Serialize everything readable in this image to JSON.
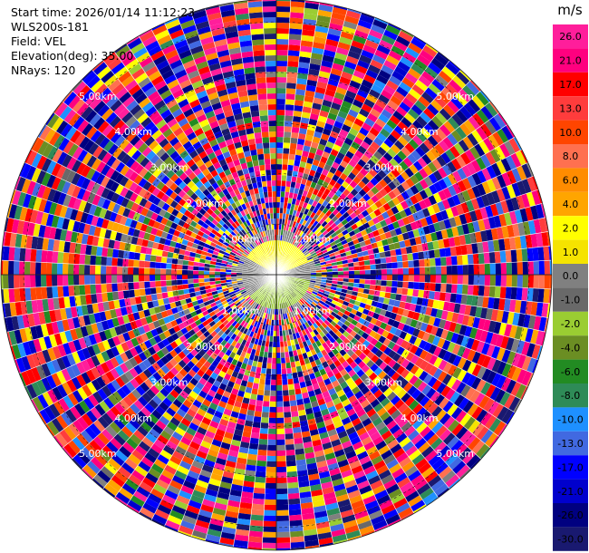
{
  "info": {
    "start_time": "Start time: 2026/01/14 11:12:23",
    "site": "WLS200s-181",
    "field": "Field: VEL",
    "elevation": "Elevation(deg): 35.00",
    "nrays": "NRays: 120"
  },
  "colorbar": {
    "unit": "m/s",
    "bins": [
      {
        "label": "26.0",
        "color": "#ff1e9b"
      },
      {
        "label": "21.0",
        "color": "#ff007f"
      },
      {
        "label": "17.0",
        "color": "#ff0000"
      },
      {
        "label": "13.0",
        "color": "#ff3c3c"
      },
      {
        "label": "10.0",
        "color": "#ff4500"
      },
      {
        "label": "8.0",
        "color": "#ff7050"
      },
      {
        "label": "6.0",
        "color": "#ff8c00"
      },
      {
        "label": "4.0",
        "color": "#ffa500"
      },
      {
        "label": "2.0",
        "color": "#ffff00"
      },
      {
        "label": "1.0",
        "color": "#f5e300"
      },
      {
        "label": "0.0",
        "color": "#808080"
      },
      {
        "label": "-1.0",
        "color": "#696969"
      },
      {
        "label": "-2.0",
        "color": "#9acd32"
      },
      {
        "label": "-4.0",
        "color": "#6b8e23"
      },
      {
        "label": "-6.0",
        "color": "#228b22"
      },
      {
        "label": "-8.0",
        "color": "#2e8b57"
      },
      {
        "label": "-10.0",
        "color": "#1e90ff"
      },
      {
        "label": "-13.0",
        "color": "#4169e1"
      },
      {
        "label": "-17.0",
        "color": "#0000ff"
      },
      {
        "label": "-21.0",
        "color": "#0000cd"
      },
      {
        "label": "-26.0",
        "color": "#000080"
      },
      {
        "label": "-30.0",
        "color": "#191970"
      }
    ]
  },
  "chart_data": {
    "type": "heatmap",
    "subtype": "ppi-polar",
    "field": "VEL",
    "elevation_deg": 35.0,
    "nrays": 120,
    "range_rings_km": [
      1.0,
      2.0,
      3.0,
      4.0,
      5.0
    ],
    "range_labels": [
      "1.00km",
      "2.00km",
      "3.00km",
      "4.00km",
      "5.00km"
    ],
    "max_range_km": 5.45,
    "value_range": [
      -30.0,
      30.0
    ],
    "near_field_km": 0.95,
    "near_field_pattern": "positive (yellow) toward north, negative (olive/green) toward south-east, zero (grey) elsewhere",
    "far_field_pattern": "noisy velocities across full colour range"
  }
}
